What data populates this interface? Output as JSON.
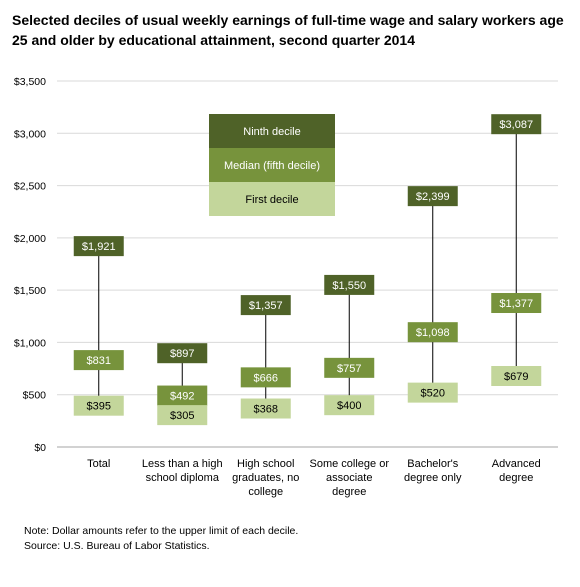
{
  "chart_data": {
    "type": "bar",
    "title": "Selected deciles of usual weekly earnings of full-time wage and salary workers age 25 and older by educational attainment, second quarter 2014",
    "categories": [
      [
        "Total"
      ],
      [
        "Less than a high",
        "school diploma"
      ],
      [
        "High school",
        "graduates, no",
        "college"
      ],
      [
        "Some college or",
        "associate",
        "degree"
      ],
      [
        "Bachelor's",
        "degree only"
      ],
      [
        "Advanced",
        "degree"
      ]
    ],
    "series": [
      {
        "name": "Ninth decile",
        "values": [
          1921,
          897,
          1357,
          1550,
          2399,
          3087
        ],
        "labels": [
          "$1,921",
          "$897",
          "$1,357",
          "$1,550",
          "$2,399",
          "$3,087"
        ],
        "color": "#4f6228",
        "text_color": "#ffffff"
      },
      {
        "name": "Median (fifth decile)",
        "values": [
          831,
          492,
          666,
          757,
          1098,
          1377
        ],
        "labels": [
          "$831",
          "$492",
          "$666",
          "$757",
          "$1,098",
          "$1,377"
        ],
        "color": "#77933c",
        "text_color": "#ffffff"
      },
      {
        "name": "First decile",
        "values": [
          395,
          305,
          368,
          400,
          520,
          679
        ],
        "labels": [
          "$395",
          "$305",
          "$368",
          "$400",
          "$520",
          "$679"
        ],
        "color": "#c3d69b",
        "text_color": "#000000"
      }
    ],
    "ylim": [
      0,
      3500
    ],
    "yticks": [
      0,
      500,
      1000,
      1500,
      2000,
      2500,
      3000,
      3500
    ],
    "ytick_labels": [
      "$0",
      "$500",
      "$1,000",
      "$1,500",
      "$2,000",
      "$2,500",
      "$3,000",
      "$3,500"
    ],
    "grid": true,
    "legend": "top-center"
  },
  "notes": {
    "note": "Note: Dollar amounts refer to the upper limit of each decile.",
    "source": "Source: U.S. Bureau of Labor Statistics."
  }
}
